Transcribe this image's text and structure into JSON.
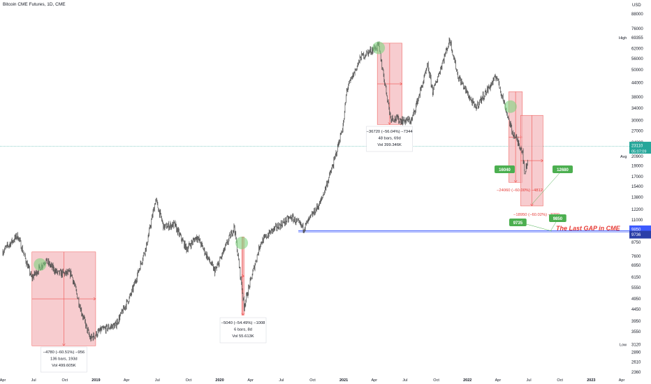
{
  "header": {
    "title": "Bitcoin CME Futures, 1D, CME"
  },
  "axis": {
    "currency": "USD",
    "high_label": "High",
    "avg_label": "Avg",
    "low_label": "Low",
    "price_ticks": [
      "88000",
      "76000",
      "69355",
      "62000",
      "56000",
      "50000",
      "44000",
      "38000",
      "34000",
      "30000",
      "27000",
      "24000",
      "20900",
      "19000",
      "17000",
      "15400",
      "13800",
      "12200",
      "11000",
      "9850",
      "9736",
      "8750",
      "7600",
      "6950",
      "6150",
      "5550",
      "4950",
      "4450",
      "3950",
      "3550",
      "3120",
      "2890",
      "2610",
      "2360"
    ],
    "time_ticks": [
      "Apr",
      "Jul",
      "Oct",
      "2019",
      "Apr",
      "Jul",
      "Oct",
      "2020",
      "Apr",
      "Jul",
      "Oct",
      "2021",
      "Apr",
      "Jul",
      "Oct",
      "2022",
      "Apr",
      "Jul",
      "Oct",
      "2023",
      "Apr"
    ]
  },
  "price_badges": {
    "current_price": "23110",
    "current_countdown": "05:07:09",
    "gap_upper": "9850",
    "gap_lower": "9736"
  },
  "colors": {
    "candles": "#4a4a4a",
    "range_fill": "#f4b7bb",
    "range_line": "#ef5350",
    "highlight_circle": "#7ed47e",
    "callout_green": "#4caf50",
    "gap_line": "#3d5afe",
    "current_price": "#26a69a",
    "annotation_red": "#e53935"
  },
  "annotations": {
    "range1": {
      "line1": "−4780 (−60.51%) −956",
      "line2": "136 bars, 193d",
      "line3": "Vol 499.605K"
    },
    "range2": {
      "line1": "−5040 (−54.49%) −1008",
      "line2": "6 bars, 8d",
      "line3": "Vol 55.613K"
    },
    "range3": {
      "line1": "−36720 (−56.04%) −7344",
      "line2": "48 bars, 69d",
      "line3": "Vol 399.346K"
    },
    "range4": {
      "label": "−24060 (−60.00%) −4812"
    },
    "range5": {
      "label": "−18950 (−60.02%) −3790"
    },
    "callouts": [
      "16040",
      "12680",
      "9850",
      "9735"
    ],
    "gap_text": "The Last GAP in CME"
  },
  "chart_data": {
    "type": "line",
    "title": "Bitcoin CME Futures, 1D, CME",
    "ylabel": "USD",
    "y_scale": "log",
    "ylim": [
      2300,
      90000
    ],
    "x": [
      "2018-04",
      "2018-07",
      "2018-10",
      "2019-01",
      "2019-04",
      "2019-07",
      "2019-10",
      "2020-01",
      "2020-04",
      "2020-07",
      "2020-10",
      "2021-01",
      "2021-04",
      "2021-07",
      "2021-10",
      "2022-01",
      "2022-04",
      "2022-07",
      "2022-10",
      "2023-01",
      "2023-04"
    ],
    "series": [
      {
        "values": [
          [
            [
              "2018-04-01",
              8000
            ],
            [
              "2018-05-15",
              9400
            ],
            [
              "2018-06-25",
              6100
            ],
            [
              "2018-08-05",
              7300
            ],
            [
              "2018-09-10",
              6400
            ],
            [
              "2018-10-20",
              6400
            ],
            [
              "2018-11-20",
              4300
            ],
            [
              "2018-12-15",
              3300
            ],
            [
              "2019-01-15",
              3600
            ],
            [
              "2019-02-28",
              3800
            ],
            [
              "2019-04-15",
              5200
            ],
            [
              "2019-05-30",
              8500
            ],
            [
              "2019-06-26",
              13500
            ],
            [
              "2019-07-20",
              10200
            ],
            [
              "2019-08-20",
              10500
            ],
            [
              "2019-09-25",
              8200
            ],
            [
              "2019-10-26",
              9300
            ],
            [
              "2019-12-18",
              6500
            ],
            [
              "2020-02-13",
              10300
            ],
            [
              "2020-03-13",
              4600
            ],
            [
              "2020-04-30",
              8700
            ],
            [
              "2020-06-01",
              9800
            ],
            [
              "2020-07-30",
              11300
            ],
            [
              "2020-09-05",
              10100
            ],
            [
              "2020-10-25",
              13200
            ],
            [
              "2020-12-01",
              19200
            ],
            [
              "2020-12-31",
              29000
            ],
            [
              "2021-01-10",
              41000
            ],
            [
              "2021-02-21",
              57000
            ],
            [
              "2021-04-14",
              64000
            ],
            [
              "2021-05-19",
              31000
            ],
            [
              "2021-06-22",
              30000
            ],
            [
              "2021-07-20",
              30000
            ],
            [
              "2021-09-06",
              52000
            ],
            [
              "2021-09-21",
              40000
            ],
            [
              "2021-11-10",
              68000
            ],
            [
              "2021-12-04",
              47000
            ],
            [
              "2022-01-24",
              34000
            ],
            [
              "2022-03-28",
              47000
            ],
            [
              "2022-05-12",
              27000
            ],
            [
              "2022-06-13",
              22000
            ],
            [
              "2022-06-18",
              17600
            ],
            [
              "2022-06-28",
              20000
            ]
          ]
        ]
      }
    ],
    "measured_ranges": [
      {
        "from": "2018-07-20",
        "to": "2018-12-15",
        "change": -4780,
        "percent": -60.51,
        "per_bar": -956,
        "bars": 136,
        "days": 193,
        "volume": "499.605K"
      },
      {
        "from": "2020-03-06",
        "to": "2020-03-13",
        "change": -5040,
        "percent": -54.49,
        "per_bar": -1008,
        "bars": 6,
        "days": 8,
        "volume": "55.613K"
      },
      {
        "from": "2021-04-14",
        "to": "2021-06-22",
        "change": -36720,
        "percent": -56.04,
        "per_bar": -7344,
        "bars": 48,
        "days": 69,
        "volume": "399.346K"
      },
      {
        "from": "2022-05-05",
        "to": "2022-06-18",
        "change": -24060,
        "percent": -60.0
      },
      {
        "from": "2022-06-10",
        "to": "2022-08-10",
        "change": -18950,
        "percent": -60.02
      }
    ],
    "horizontal_levels": [
      {
        "price": 9850,
        "label": "The Last GAP in CME"
      },
      {
        "price": 9736
      }
    ]
  }
}
